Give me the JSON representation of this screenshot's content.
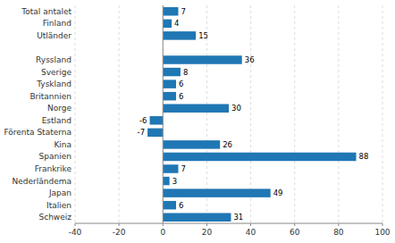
{
  "chart_data": {
    "type": "bar",
    "orientation": "horizontal",
    "categories": [
      "Schweiz",
      "Italien",
      "Japan",
      "Nederländema",
      "Frankrike",
      "Spanien",
      "Kina",
      "Förenta Staterna",
      "Estland",
      "Norge",
      "Britannien",
      "Tyskland",
      "Sverige",
      "Ryssland",
      null,
      "Utländer",
      "Finland",
      "Total antalet"
    ],
    "values": [
      31,
      6,
      49,
      3,
      7,
      88,
      26,
      -7,
      -6,
      30,
      6,
      6,
      8,
      36,
      0,
      15,
      4,
      7
    ],
    "color": "#1f77b4",
    "xlim": [
      -40,
      100
    ],
    "xticks": [
      -40,
      -20,
      0,
      20,
      40,
      60,
      80,
      100
    ],
    "grid": true,
    "data_labels": true
  }
}
